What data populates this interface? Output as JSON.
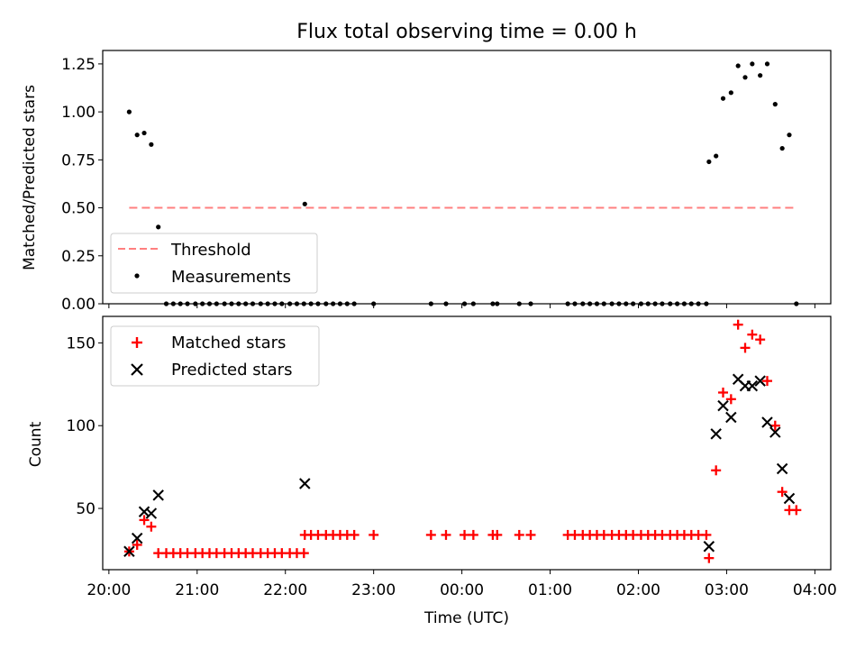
{
  "chart_data": [
    {
      "type": "scatter",
      "title": "Flux total observing time = 0.00 h",
      "xlabel": "",
      "ylabel": "Matched/Predicted stars",
      "ylim": [
        0.0,
        1.32
      ],
      "yticks": [
        0.0,
        0.25,
        0.5,
        0.75,
        1.0,
        1.25
      ],
      "ytick_labels": [
        "0.00",
        "0.25",
        "0.50",
        "0.75",
        "1.00",
        "1.25"
      ],
      "xlim": [
        -0.07,
        8.18
      ],
      "xticks": [
        0,
        1,
        2,
        3,
        4,
        5,
        6,
        7,
        8
      ],
      "xtick_labels": [
        "",
        "",
        "",
        "",
        "",
        "",
        "",
        "",
        ""
      ],
      "legend": {
        "position": "lower-left",
        "entries": [
          "Threshold",
          "Measurements"
        ]
      },
      "series": [
        {
          "name": "Threshold",
          "kind": "dashed-line",
          "color": "#ff7f7f",
          "x": [
            0.23,
            7.8
          ],
          "y": [
            0.5,
            0.5
          ]
        },
        {
          "name": "Measurements",
          "kind": "dot",
          "color": "#000000",
          "x": [
            0.23,
            0.32,
            0.4,
            0.48,
            0.56,
            0.65,
            0.73,
            0.81,
            0.89,
            0.98,
            1.06,
            1.14,
            1.22,
            1.31,
            1.39,
            1.47,
            1.55,
            1.63,
            1.72,
            1.8,
            1.88,
            1.96,
            2.05,
            2.13,
            2.21,
            2.22,
            2.29,
            2.37,
            2.46,
            2.54,
            2.62,
            2.7,
            2.78,
            3.0,
            3.65,
            3.82,
            4.03,
            4.13,
            4.35,
            4.4,
            4.65,
            4.78,
            5.2,
            5.28,
            5.37,
            5.45,
            5.53,
            5.61,
            5.7,
            5.78,
            5.86,
            5.94,
            6.03,
            6.11,
            6.19,
            6.27,
            6.36,
            6.44,
            6.52,
            6.6,
            6.68,
            6.77,
            6.8,
            6.88,
            6.96,
            7.05,
            7.13,
            7.21,
            7.29,
            7.38,
            7.46,
            7.55,
            7.63,
            7.71,
            7.79
          ],
          "y": [
            1.0,
            0.88,
            0.89,
            0.83,
            0.4,
            0.0,
            0.0,
            0.0,
            0.0,
            0.0,
            0.0,
            0.0,
            0.0,
            0.0,
            0.0,
            0.0,
            0.0,
            0.0,
            0.0,
            0.0,
            0.0,
            0.0,
            0.0,
            0.0,
            0.0,
            0.52,
            0.0,
            0.0,
            0.0,
            0.0,
            0.0,
            0.0,
            0.0,
            0.0,
            0.0,
            0.0,
            0.0,
            0.0,
            0.0,
            0.0,
            0.0,
            0.0,
            0.0,
            0.0,
            0.0,
            0.0,
            0.0,
            0.0,
            0.0,
            0.0,
            0.0,
            0.0,
            0.0,
            0.0,
            0.0,
            0.0,
            0.0,
            0.0,
            0.0,
            0.0,
            0.0,
            0.0,
            0.74,
            0.77,
            1.07,
            1.1,
            1.24,
            1.18,
            1.25,
            1.19,
            1.25,
            1.04,
            0.81,
            0.88,
            0.0
          ]
        }
      ]
    },
    {
      "type": "scatter",
      "title": "",
      "xlabel": "Time (UTC)",
      "ylabel": "Count",
      "ylim": [
        13,
        166
      ],
      "yticks": [
        50,
        100,
        150
      ],
      "ytick_labels": [
        "50",
        "100",
        "150"
      ],
      "xlim": [
        -0.07,
        8.18
      ],
      "xticks": [
        0,
        1,
        2,
        3,
        4,
        5,
        6,
        7,
        8
      ],
      "xtick_labels": [
        "20:00",
        "21:00",
        "22:00",
        "23:00",
        "00:00",
        "01:00",
        "02:00",
        "03:00",
        "04:00"
      ],
      "legend": {
        "position": "upper-left",
        "entries": [
          "Matched stars",
          "Predicted stars"
        ]
      },
      "series": [
        {
          "name": "Matched stars",
          "kind": "plus",
          "color": "#ff0000",
          "x": [
            0.23,
            0.32,
            0.4,
            0.48,
            0.56,
            0.65,
            0.73,
            0.81,
            0.89,
            0.98,
            1.06,
            1.14,
            1.22,
            1.31,
            1.39,
            1.47,
            1.55,
            1.63,
            1.72,
            1.8,
            1.88,
            1.96,
            2.05,
            2.13,
            2.21,
            2.22,
            2.29,
            2.37,
            2.46,
            2.54,
            2.62,
            2.7,
            2.78,
            3.0,
            3.65,
            3.82,
            4.03,
            4.13,
            4.35,
            4.4,
            4.65,
            4.78,
            5.2,
            5.28,
            5.37,
            5.45,
            5.53,
            5.61,
            5.7,
            5.78,
            5.86,
            5.94,
            6.03,
            6.11,
            6.19,
            6.27,
            6.36,
            6.44,
            6.52,
            6.6,
            6.68,
            6.77,
            6.8,
            6.88,
            6.96,
            7.05,
            7.13,
            7.21,
            7.29,
            7.38,
            7.46,
            7.55,
            7.63,
            7.71,
            7.79
          ],
          "y": [
            24,
            28,
            43,
            39,
            23,
            23,
            23,
            23,
            23,
            23,
            23,
            23,
            23,
            23,
            23,
            23,
            23,
            23,
            23,
            23,
            23,
            23,
            23,
            23,
            23,
            34,
            34,
            34,
            34,
            34,
            34,
            34,
            34,
            34,
            34,
            34,
            34,
            34,
            34,
            34,
            34,
            34,
            34,
            34,
            34,
            34,
            34,
            34,
            34,
            34,
            34,
            34,
            34,
            34,
            34,
            34,
            34,
            34,
            34,
            34,
            34,
            34,
            20,
            73,
            120,
            116,
            161,
            147,
            155,
            152,
            127,
            100,
            60,
            49,
            49
          ]
        },
        {
          "name": "Predicted stars",
          "kind": "x",
          "color": "#000000",
          "x": [
            0.23,
            0.32,
            0.4,
            0.48,
            0.56,
            2.22,
            6.8,
            6.88,
            6.96,
            7.05,
            7.13,
            7.21,
            7.29,
            7.38,
            7.46,
            7.55,
            7.63,
            7.71
          ],
          "y": [
            24,
            32,
            48,
            47,
            58,
            65,
            27,
            95,
            112,
            105,
            128,
            124,
            124,
            127,
            102,
            96,
            74,
            56
          ]
        }
      ]
    }
  ]
}
